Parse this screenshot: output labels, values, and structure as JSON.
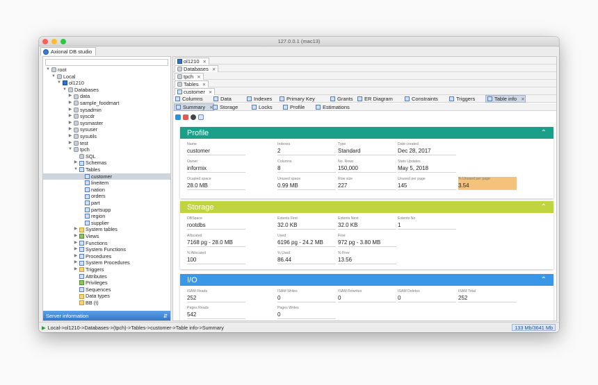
{
  "window": {
    "title": "127.0.0.1 (mac13)",
    "app_tab": "Axional DB studio"
  },
  "colors": {
    "profile": "#1aa088",
    "storage": "#c0d440",
    "io": "#3a97e8",
    "highlight": "#f4c27a"
  },
  "tree": [
    {
      "label": "root",
      "icon": "server-icon"
    },
    {
      "label": "Local",
      "icon": "server-icon"
    },
    {
      "label": "ol1210",
      "icon": "informix-icon"
    },
    {
      "label": "Databases",
      "icon": "databases-icon"
    },
    {
      "label": "data",
      "icon": "database-icon"
    },
    {
      "label": "sample_foodmart",
      "icon": "database-icon"
    },
    {
      "label": "sysadmin",
      "icon": "database-icon"
    },
    {
      "label": "syscdr",
      "icon": "database-icon"
    },
    {
      "label": "sysmaster",
      "icon": "database-icon"
    },
    {
      "label": "sysuser",
      "icon": "database-icon"
    },
    {
      "label": "sysutils",
      "icon": "database-icon"
    },
    {
      "label": "test",
      "icon": "database-icon"
    },
    {
      "label": "tpch",
      "icon": "database-icon"
    },
    {
      "label": "SQL",
      "icon": "sql-icon"
    },
    {
      "label": "Schemas",
      "icon": "schemas-icon"
    },
    {
      "label": "Tables",
      "icon": "tables-icon"
    },
    {
      "label": "customer",
      "icon": "table-icon"
    },
    {
      "label": "lineitem",
      "icon": "table-icon"
    },
    {
      "label": "nation",
      "icon": "table-icon"
    },
    {
      "label": "orders",
      "icon": "table-icon"
    },
    {
      "label": "part",
      "icon": "table-icon"
    },
    {
      "label": "partsupp",
      "icon": "table-icon"
    },
    {
      "label": "region",
      "icon": "table-icon"
    },
    {
      "label": "supplier",
      "icon": "table-icon"
    },
    {
      "label": "System tables",
      "icon": "folder-icon"
    },
    {
      "label": "Views",
      "icon": "views-icon"
    },
    {
      "label": "Functions",
      "icon": "functions-icon"
    },
    {
      "label": "System Functions",
      "icon": "functions-icon"
    },
    {
      "label": "Procedures",
      "icon": "procedures-icon"
    },
    {
      "label": "System Procedures",
      "icon": "procedures-icon"
    },
    {
      "label": "Triggers",
      "icon": "triggers-icon"
    },
    {
      "label": "Attributes",
      "icon": "attributes-icon"
    },
    {
      "label": "Privileges",
      "icon": "privileges-icon"
    },
    {
      "label": "Sequences",
      "icon": "sequences-icon"
    },
    {
      "label": "Data types",
      "icon": "datatypes-icon"
    },
    {
      "label": "BB (t)",
      "icon": "folder-icon"
    }
  ],
  "selected_tree_item": "customer",
  "server_info": {
    "label": "Server information",
    "icon": "expand-icon"
  },
  "crumbs": [
    "ol1210",
    "Databases",
    "tpch",
    "Tables",
    "customer"
  ],
  "tabs_main": [
    "Columns",
    "Data",
    "Indexes",
    "Primary Key",
    "Grants",
    "ER Diagram",
    "Constraints",
    "Triggers",
    "Table info"
  ],
  "tabs_sub": [
    "Summary",
    "Storage",
    "Locks",
    "Profile",
    "Estimations"
  ],
  "profile": {
    "title": "Profile",
    "fields": [
      {
        "label": "Name",
        "value": "customer"
      },
      {
        "label": "Indexes",
        "value": "2"
      },
      {
        "label": "Type",
        "value": "Standard"
      },
      {
        "label": "Date created",
        "value": "Dec 28, 2017"
      },
      {
        "label": "Owner",
        "value": "informix"
      },
      {
        "label": "Columns",
        "value": "8"
      },
      {
        "label": "No. Rows",
        "value": "150,000"
      },
      {
        "label": "Stats Updates",
        "value": "May 5, 2018"
      },
      {
        "label": "Ocupied space",
        "value": "28.0 MB"
      },
      {
        "label": "Unused space",
        "value": "0.99 MB"
      },
      {
        "label": "Row size",
        "value": "227"
      },
      {
        "label": "Unused per page",
        "value": "145"
      },
      {
        "label": "% Unused per page",
        "value": "3.54"
      }
    ]
  },
  "storage": {
    "title": "Storage",
    "fields": [
      {
        "label": "DBSpace",
        "value": "rootdbs"
      },
      {
        "label": "Extents First",
        "value": "32.0 KB"
      },
      {
        "label": "Extents Next",
        "value": "32.0 KB"
      },
      {
        "label": "Extents No",
        "value": "1"
      },
      {
        "label": "Allocated",
        "value": "7168 pg - 28.0 MB"
      },
      {
        "label": "Used",
        "value": "6196 pg - 24.2 MB"
      },
      {
        "label": "Free",
        "value": "972 pg - 3.80 MB"
      },
      {
        "label": "% Allocated",
        "value": "100"
      },
      {
        "label": "% Used",
        "value": "86.44"
      },
      {
        "label": "% Free",
        "value": "13.56"
      }
    ]
  },
  "io": {
    "title": "I/O",
    "fields": [
      {
        "label": "ISAM Reads",
        "value": "252"
      },
      {
        "label": "ISAM Writes",
        "value": "0"
      },
      {
        "label": "ISAM Rewrites",
        "value": "0"
      },
      {
        "label": "ISAM Deletes",
        "value": "0"
      },
      {
        "label": "ISAM Total",
        "value": "252"
      },
      {
        "label": "Pages Reads",
        "value": "542"
      },
      {
        "label": "Pages Writes",
        "value": "0"
      }
    ]
  },
  "status": {
    "path": "Local->ol1210->Databases->(tpch)->Tables->customer->Table info->Summary",
    "memory": "133 Mb/3641 Mb"
  }
}
